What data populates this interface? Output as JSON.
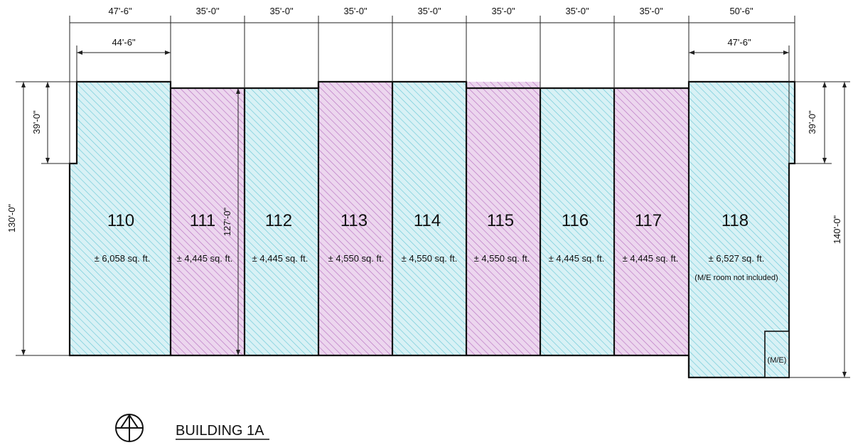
{
  "colors": {
    "blue_fill": "#d8f1f5",
    "blue_hatch": "#6cc9d8",
    "purple_fill": "#ecd6ee",
    "purple_hatch": "#b873c2",
    "line": "#111111"
  },
  "top_dims": [
    "47'-6\"",
    "35'-0\"",
    "35'-0\"",
    "35'-0\"",
    "35'-0\"",
    "35'-0\"",
    "35'-0\"",
    "35'-0\"",
    "50'-6\""
  ],
  "inner_dims": {
    "left": "44'-6\"",
    "right": "47'-6\""
  },
  "side_dims": {
    "left_outer": "130'-0\"",
    "left_notch": "39'-0\"",
    "right_notch": "39'-0\"",
    "right_outer": "140'-0\"",
    "unit_111_depth": "127'-0\""
  },
  "units": [
    {
      "number": "110",
      "area": "± 6,058 sq. ft.",
      "color": "blue"
    },
    {
      "number": "111",
      "area": "± 4,445 sq. ft.",
      "color": "purple"
    },
    {
      "number": "112",
      "area": "± 4,445 sq. ft.",
      "color": "blue"
    },
    {
      "number": "113",
      "area": "± 4,550 sq. ft.",
      "color": "purple"
    },
    {
      "number": "114",
      "area": "± 4,550 sq. ft.",
      "color": "blue"
    },
    {
      "number": "115",
      "area": "± 4,550 sq. ft.",
      "color": "purple"
    },
    {
      "number": "116",
      "area": "± 4,445 sq. ft.",
      "color": "blue"
    },
    {
      "number": "117",
      "area": "± 4,445 sq. ft.",
      "color": "purple"
    },
    {
      "number": "118",
      "area": "± 6,527 sq. ft.",
      "color": "blue",
      "note": "(M/E room not included)"
    }
  ],
  "me_room_label": "(M/E)",
  "building_title": "BUILDING 1A",
  "north_arrow_icon": "north-arrow-icon"
}
